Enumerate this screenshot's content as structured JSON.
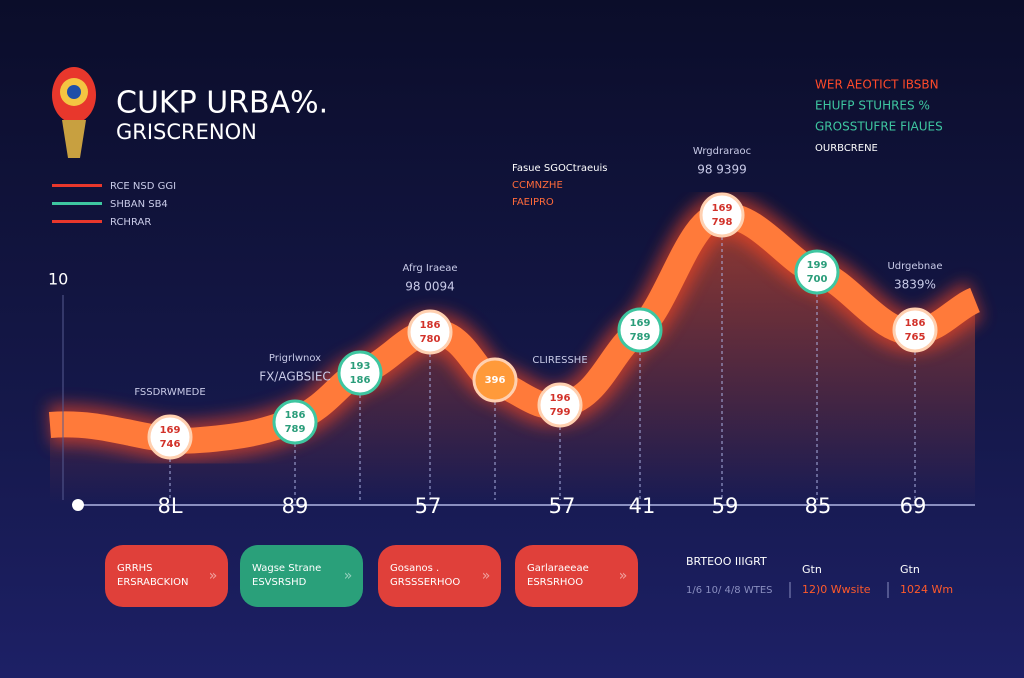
{
  "header": {
    "title": "CUKP URBA%.",
    "subtitle": "GRISCRENON"
  },
  "legend": [
    "WER AEOTICT IBSBN",
    "EHUFP STUHRES %",
    "GROSSTUFRE FIAUES",
    "OURBCRENE"
  ],
  "side_notes": [
    "RCE NSD GGI",
    "SHBAN SB4",
    "RCHRAR"
  ],
  "center_notes": [
    "Fasue SGOCtraeuis",
    "CCMNZHE",
    "FAEIPRO"
  ],
  "y_label": "10",
  "points": [
    {
      "top": "169",
      "bottom": "746",
      "note": [
        "FSSDRWMEDE"
      ]
    },
    {
      "top": "186",
      "bottom": "789",
      "note": [
        "Prigrlwnox",
        "FX/AGBSIEC"
      ]
    },
    {
      "top": "193",
      "bottom": "186",
      "note": []
    },
    {
      "top": "186",
      "bottom": "780",
      "note": [
        "Afrg Iraeae",
        "98 0094"
      ]
    },
    {
      "top": "396",
      "bottom": "",
      "note": []
    },
    {
      "top": "196",
      "bottom": "799",
      "note": [
        "CLIRESSHE"
      ]
    },
    {
      "top": "169",
      "bottom": "789",
      "note": []
    },
    {
      "top": "169",
      "bottom": "798",
      "note": [
        "Wrgdraraoc",
        "98 9399"
      ]
    },
    {
      "top": "199",
      "bottom": "700",
      "note": []
    },
    {
      "top": "186",
      "bottom": "765",
      "note": [
        "Udrgebnae",
        "3839%"
      ]
    }
  ],
  "axis_labels": [
    "8L",
    "89",
    "57",
    "57",
    "41",
    "59",
    "85",
    "69"
  ],
  "buttons": [
    [
      "GRRHS",
      "ERSRABCKION"
    ],
    [
      "Wagse Strane",
      "ESVSRSHD"
    ],
    [
      "Gosanos .",
      "GRSSSERHOO"
    ],
    [
      "Garlaraeeae",
      "ESRSRHOO"
    ]
  ],
  "stats": {
    "title": "BRTEOO IIIGRT",
    "line": "1/6 10/ 4/8 WTES",
    "items": [
      [
        "Gtn",
        "12)0 Wwsite"
      ],
      [
        "Gtn",
        "1024 Wm"
      ]
    ]
  }
}
